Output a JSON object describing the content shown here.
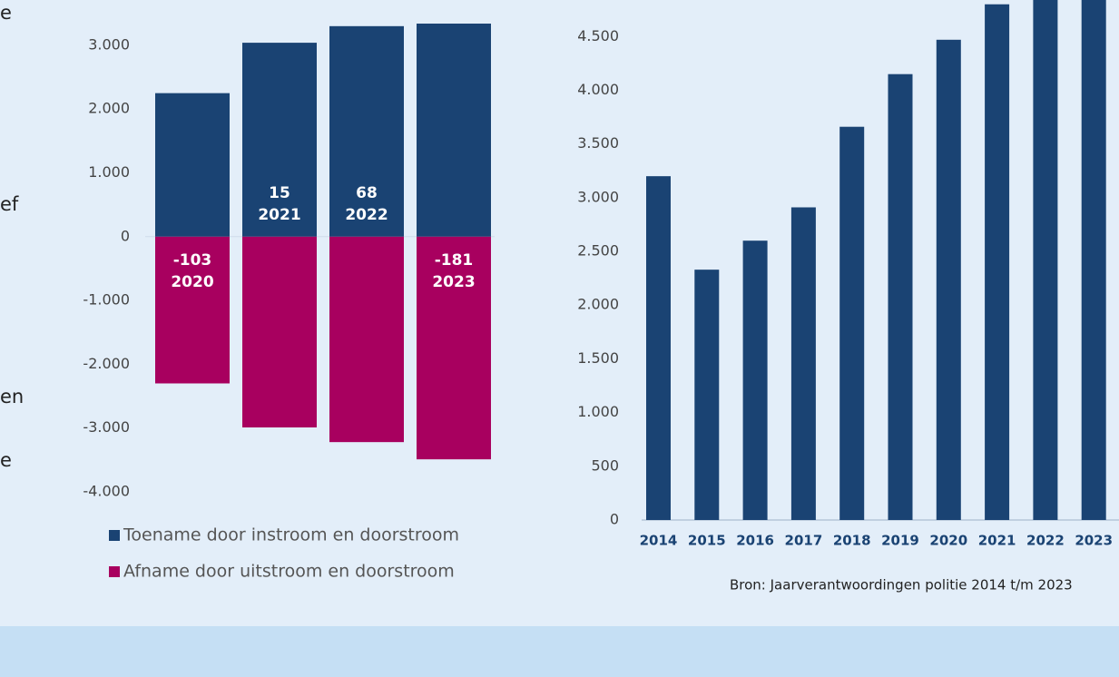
{
  "side_text": [
    "e",
    "ef",
    "en",
    "e"
  ],
  "chart_data": [
    {
      "type": "stacked_bar",
      "categories": [
        "2020",
        "2021",
        "2022",
        "2023"
      ],
      "series": [
        {
          "name": "Toename door instroom en doorstroom",
          "color": "#1a4373",
          "values": [
            2250,
            3040,
            3300,
            3340
          ]
        },
        {
          "name": "Afname door uitstroom en doorstroom",
          "color": "#a8005f",
          "values": [
            -2300,
            -2990,
            -3220,
            -3490
          ]
        }
      ],
      "net_values": [
        -103,
        15,
        68,
        -181
      ],
      "ylim": [
        -4000,
        3710
      ],
      "yticks": [
        {
          "value": 3000,
          "label": "3.000"
        },
        {
          "value": 2000,
          "label": "2.000"
        },
        {
          "value": 1000,
          "label": "1.000"
        },
        0,
        {
          "value": -1000,
          "label": "-1.000"
        },
        {
          "value": -2000,
          "label": "-2.000"
        },
        {
          "value": -3000,
          "label": "-3.000"
        },
        {
          "value": -4000,
          "label": "-4.000"
        }
      ]
    },
    {
      "type": "bar",
      "categories": [
        "2014",
        "2015",
        "2016",
        "2017",
        "2018",
        "2019",
        "2020",
        "2021",
        "2022",
        "2023"
      ],
      "values": [
        3200,
        2330,
        2600,
        2910,
        3660,
        4150,
        4470,
        4800,
        4950,
        5050
      ],
      "color": "#1a4373",
      "ylim": [
        0,
        4840
      ],
      "yticks": [
        0,
        500,
        {
          "value": 1000,
          "label": "1.000"
        },
        {
          "value": 1500,
          "label": "1.500"
        },
        {
          "value": 2000,
          "label": "2.000"
        },
        {
          "value": 2500,
          "label": "2.500"
        },
        {
          "value": 3000,
          "label": "3.000"
        },
        {
          "value": 3500,
          "label": "3.500"
        },
        {
          "value": 4000,
          "label": "4.000"
        },
        {
          "value": 4500,
          "label": "4.500"
        }
      ],
      "source": "Bron: Jaarverantwoordingen politie 2014 t/m 2023"
    }
  ]
}
